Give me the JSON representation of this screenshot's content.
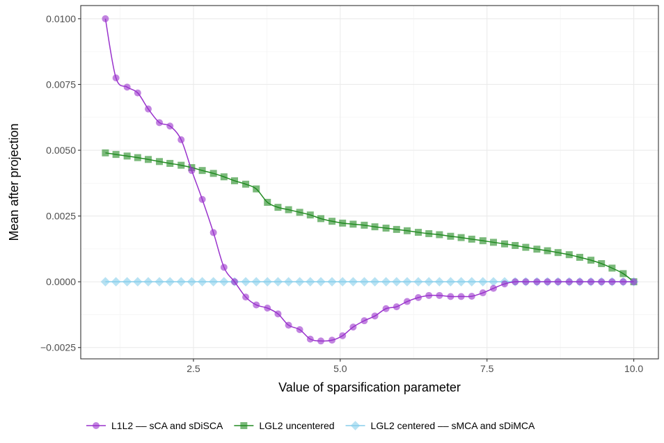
{
  "chart_data": {
    "type": "line",
    "title": "",
    "xlabel": "Value of sparsification parameter",
    "ylabel": "Mean after projection",
    "xlim": [
      0.58,
      10.42
    ],
    "ylim": [
      -0.00293,
      0.0105
    ],
    "x_ticks": [
      2.5,
      5.0,
      7.5,
      10.0
    ],
    "x_tick_labels": [
      "2.5",
      "5.0",
      "7.5",
      "10.0"
    ],
    "y_ticks": [
      -0.0025,
      0.0,
      0.0025,
      0.005,
      0.0075,
      0.01
    ],
    "y_tick_labels": [
      "−0.0025",
      "0.0000",
      "0.0025",
      "0.0050",
      "0.0075",
      "0.0100"
    ],
    "grid": true,
    "legend_position": "bottom",
    "series": [
      {
        "name": "L1L2 –– sCA and sDiSCA",
        "color": "#9932CC",
        "marker": "circle",
        "x": [
          1.0,
          1.18,
          1.37,
          1.55,
          1.73,
          1.92,
          2.1,
          2.29,
          2.47,
          2.65,
          2.84,
          3.02,
          3.2,
          3.39,
          3.57,
          3.76,
          3.94,
          4.12,
          4.31,
          4.49,
          4.67,
          4.86,
          5.04,
          5.22,
          5.41,
          5.59,
          5.78,
          5.96,
          6.14,
          6.33,
          6.51,
          6.69,
          6.88,
          7.06,
          7.24,
          7.43,
          7.61,
          7.8,
          7.98,
          8.16,
          8.35,
          8.53,
          8.71,
          8.9,
          9.08,
          9.27,
          9.45,
          9.63,
          9.82,
          10.0
        ],
        "y": [
          0.01,
          0.00775,
          0.0074,
          0.00718,
          0.00657,
          0.00605,
          0.00592,
          0.0054,
          0.00423,
          0.00313,
          0.00187,
          0.00055,
          0.0,
          -0.00058,
          -0.00088,
          -0.001,
          -0.00122,
          -0.00165,
          -0.00182,
          -0.00218,
          -0.00225,
          -0.00222,
          -0.00205,
          -0.00172,
          -0.00148,
          -0.0013,
          -0.00102,
          -0.00095,
          -0.00075,
          -0.0006,
          -0.00052,
          -0.00052,
          -0.00056,
          -0.00056,
          -0.00055,
          -0.00042,
          -0.00025,
          -8e-05,
          0.0,
          0.0,
          0.0,
          0.0,
          0.0,
          0.0,
          0.0,
          0.0,
          0.0,
          0.0,
          0.0,
          0.0
        ]
      },
      {
        "name": "LGL2 uncentered",
        "color": "#228B22",
        "marker": "square",
        "x": [
          1.0,
          1.18,
          1.37,
          1.55,
          1.73,
          1.92,
          2.1,
          2.29,
          2.47,
          2.65,
          2.84,
          3.02,
          3.2,
          3.39,
          3.57,
          3.76,
          3.94,
          4.12,
          4.31,
          4.49,
          4.67,
          4.86,
          5.04,
          5.22,
          5.41,
          5.59,
          5.78,
          5.96,
          6.14,
          6.33,
          6.51,
          6.69,
          6.88,
          7.06,
          7.24,
          7.43,
          7.61,
          7.8,
          7.98,
          8.16,
          8.35,
          8.53,
          8.71,
          8.9,
          9.08,
          9.27,
          9.45,
          9.63,
          9.82,
          10.0
        ],
        "y": [
          0.0049,
          0.00484,
          0.00478,
          0.00472,
          0.00465,
          0.00457,
          0.0045,
          0.00443,
          0.00434,
          0.00423,
          0.00412,
          0.00399,
          0.00384,
          0.00371,
          0.00353,
          0.00302,
          0.00283,
          0.00274,
          0.00264,
          0.00254,
          0.0024,
          0.0023,
          0.00223,
          0.00219,
          0.00215,
          0.00209,
          0.00204,
          0.00199,
          0.00194,
          0.00188,
          0.00183,
          0.00179,
          0.00173,
          0.00168,
          0.00162,
          0.00156,
          0.0015,
          0.00144,
          0.00138,
          0.00131,
          0.00124,
          0.00118,
          0.00111,
          0.00103,
          0.00093,
          0.00082,
          0.00069,
          0.00052,
          0.00031,
          0.0
        ]
      },
      {
        "name": "LGL2 centered –– sMCA and sDiMCA",
        "color": "#87CEEB",
        "marker": "diamond",
        "x": [
          1.0,
          1.18,
          1.37,
          1.55,
          1.73,
          1.92,
          2.1,
          2.29,
          2.47,
          2.65,
          2.84,
          3.02,
          3.2,
          3.39,
          3.57,
          3.76,
          3.94,
          4.12,
          4.31,
          4.49,
          4.67,
          4.86,
          5.04,
          5.22,
          5.41,
          5.59,
          5.78,
          5.96,
          6.14,
          6.33,
          6.51,
          6.69,
          6.88,
          7.06,
          7.24,
          7.43,
          7.61,
          7.8,
          7.98,
          8.16,
          8.35,
          8.53,
          8.71,
          8.9,
          9.08,
          9.27,
          9.45,
          9.63,
          9.82,
          10.0
        ],
        "y": [
          0.0,
          0.0,
          0.0,
          0.0,
          0.0,
          0.0,
          0.0,
          0.0,
          0.0,
          0.0,
          0.0,
          0.0,
          0.0,
          0.0,
          0.0,
          0.0,
          0.0,
          0.0,
          0.0,
          0.0,
          0.0,
          0.0,
          0.0,
          0.0,
          0.0,
          0.0,
          0.0,
          0.0,
          0.0,
          0.0,
          0.0,
          0.0,
          0.0,
          0.0,
          0.0,
          0.0,
          0.0,
          0.0,
          0.0,
          0.0,
          0.0,
          0.0,
          0.0,
          0.0,
          0.0,
          0.0,
          0.0,
          0.0,
          0.0,
          0.0
        ]
      }
    ]
  }
}
